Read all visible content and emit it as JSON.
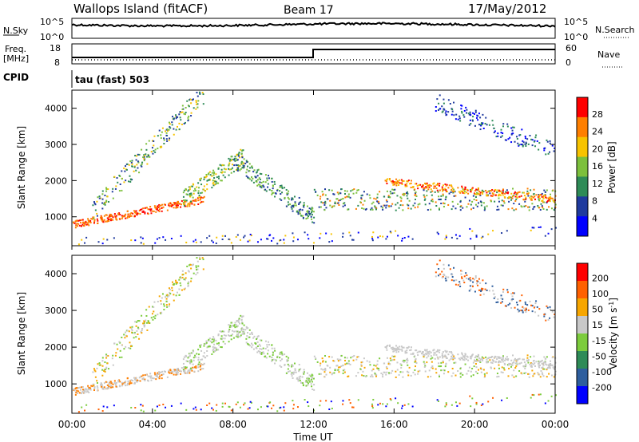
{
  "header": {
    "station": "Wallops Island (fitACF)",
    "beam": "Beam 17",
    "date": "17/May/2012"
  },
  "chart_data": [
    {
      "type": "line",
      "panel": "noise",
      "left_label": "N.Sky",
      "right_label": "N.Search",
      "left_ticks": [
        "10^5",
        "10^0"
      ],
      "right_ticks": [
        "10^5",
        "10^0"
      ],
      "scale": "log"
    },
    {
      "type": "line",
      "panel": "frequency",
      "left_label_top": "Freq.",
      "left_label_units": "[MHz]",
      "right_label": "Nave",
      "left_ticks": [
        "18",
        "8"
      ],
      "right_ticks": [
        "60",
        "0"
      ],
      "cpid_label": "CPID",
      "cpid_text": "tau (fast) 503",
      "freq_step_time": "12:00"
    },
    {
      "type": "heatmap",
      "panel": "power",
      "ylabel": "Slant Range [km]",
      "yticks": [
        "4000",
        "3000",
        "2000",
        "1000"
      ],
      "ylim": [
        200,
        4500
      ],
      "xlim": [
        "00:00",
        "24:00"
      ],
      "colorbar_label": "Power [dB]",
      "colorbar_ticks": [
        "28",
        "24",
        "20",
        "16",
        "12",
        "8",
        "4"
      ],
      "colors": [
        "#0000ff",
        "#1f3a9e",
        "#2e8b57",
        "#7cc03c",
        "#f7c300",
        "#ff7f00",
        "#ff0000"
      ]
    },
    {
      "type": "heatmap",
      "panel": "velocity",
      "ylabel": "Slant Range [km]",
      "yticks": [
        "4000",
        "3000",
        "2000",
        "1000"
      ],
      "ylim": [
        200,
        4500
      ],
      "colorbar_label": "Velocity [m s",
      "colorbar_label_sup": "-1",
      "colorbar_label_end": "]",
      "colorbar_ticks": [
        "200",
        "100",
        "50",
        "15",
        "-15",
        "-50",
        "-100",
        "-200"
      ],
      "colors": [
        "#0000ff",
        "#2e5e9e",
        "#2e8b57",
        "#7ccc3c",
        "#c8c8c8",
        "#f7a600",
        "#ff6000",
        "#ff0000"
      ],
      "ground_scatter_color": "#c8c8c8"
    }
  ],
  "xaxis": {
    "ticks": [
      "00:00",
      "04:00",
      "08:00",
      "12:00",
      "16:00",
      "20:00",
      "00:00"
    ],
    "label": "Time UT"
  }
}
